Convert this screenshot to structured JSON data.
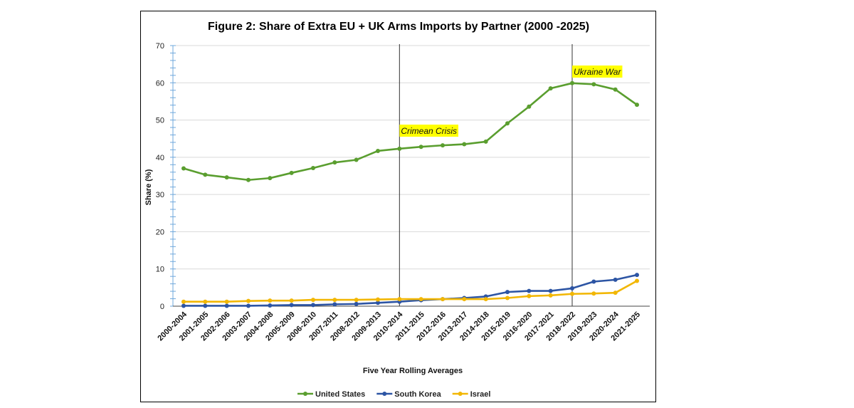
{
  "chart_data": {
    "type": "line",
    "title": "Figure 2: Share of Extra EU + UK Arms Imports by Partner (2000 -2025)",
    "xlabel": "Five Year Rolling Averages",
    "ylabel": "Share (%)",
    "ylim": [
      0,
      70
    ],
    "yticks": [
      0,
      10,
      20,
      30,
      40,
      50,
      60,
      70
    ],
    "grid": true,
    "legend_position": "bottom",
    "categories": [
      "2000-2004",
      "2001-2005",
      "2002-2006",
      "2003-2007",
      "2004-2008",
      "2005-2009",
      "2006-2010",
      "2007-2011",
      "2008-2012",
      "2009-2013",
      "2010-2014",
      "2011-2015",
      "2012-2016",
      "2013-2017",
      "2014-2018",
      "2015-2019",
      "2016-2020",
      "2017-2021",
      "2018-2022",
      "2019-2023",
      "2020-2024",
      "2021-2025"
    ],
    "series": [
      {
        "name": "United States",
        "color": "#5a9e2f",
        "values": [
          37.0,
          35.3,
          34.6,
          33.9,
          34.4,
          35.8,
          37.1,
          38.6,
          39.3,
          41.7,
          42.3,
          42.8,
          43.2,
          43.5,
          44.2,
          49.1,
          53.6,
          58.5,
          59.9,
          59.6,
          58.2,
          54.1
        ]
      },
      {
        "name": "South Korea",
        "color": "#2d55a4",
        "values": [
          0.1,
          0.1,
          0.1,
          0.1,
          0.2,
          0.3,
          0.3,
          0.5,
          0.6,
          0.9,
          1.2,
          1.6,
          1.9,
          2.2,
          2.6,
          3.8,
          4.1,
          4.1,
          4.8,
          6.6,
          7.1,
          8.4
        ]
      },
      {
        "name": "Israel",
        "color": "#f2b705",
        "values": [
          1.2,
          1.2,
          1.2,
          1.4,
          1.5,
          1.5,
          1.7,
          1.7,
          1.7,
          1.8,
          1.9,
          1.9,
          1.9,
          1.9,
          1.9,
          2.2,
          2.7,
          2.9,
          3.3,
          3.4,
          3.6,
          6.8
        ]
      }
    ],
    "annotations": [
      {
        "label": "Crimean Crisis",
        "category": "2010-2014",
        "highlight": "#ffff00"
      },
      {
        "label": "Ukraine War",
        "category": "2018-2022",
        "highlight": "#ffff00"
      }
    ]
  }
}
